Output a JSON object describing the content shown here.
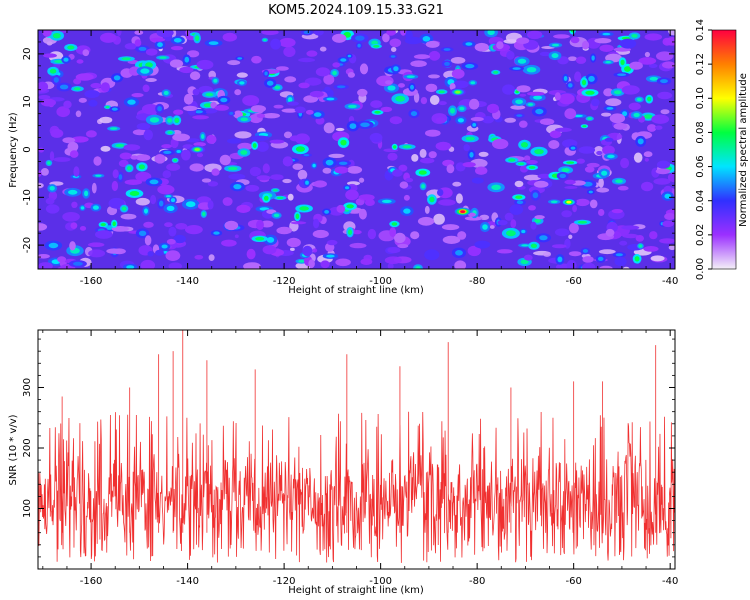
{
  "chart_data": [
    {
      "type": "heatmap",
      "title": "KOM5.2024.109.15.33.G21",
      "xlabel": "Height of straight line (km)",
      "ylabel": "Frequency (Hz)",
      "xlim": [
        -171,
        -39
      ],
      "ylim": [
        -25,
        25
      ],
      "x_ticks": [
        -160,
        -140,
        -120,
        -100,
        -80,
        -60,
        -40
      ],
      "y_ticks": [
        -20,
        -10,
        0,
        10,
        20
      ],
      "grid": false,
      "colorbar": {
        "label": "Normalized spectral amplitude",
        "range": [
          0,
          0.14
        ],
        "ticks": [
          "0.00",
          "0.02",
          "0.04",
          "0.06",
          "0.08",
          "0.10",
          "0.12",
          "0.14"
        ],
        "colormap": [
          "#f4f0f8",
          "#9b30ff",
          "#3030ff",
          "#00e5ff",
          "#00ff40",
          "#ffff00",
          "#ff8000",
          "#ff0040"
        ]
      },
      "highlights": [
        {
          "x": -83,
          "y": -13,
          "value": 0.14
        },
        {
          "x": -61,
          "y": -11,
          "value": 0.1
        },
        {
          "x": -138,
          "y": 0,
          "value": 0.09
        },
        {
          "x": -84,
          "y": 12,
          "value": 0.09
        }
      ]
    },
    {
      "type": "line",
      "xlabel": "Height of straight line (km)",
      "ylabel": "SNR (10 * v/v)",
      "xlim": [
        -171,
        -39
      ],
      "ylim": [
        0,
        395
      ],
      "x_ticks": [
        -160,
        -140,
        -120,
        -100,
        -80,
        -60,
        -40
      ],
      "y_ticks": [
        100,
        200,
        300
      ],
      "grid": false,
      "series_color": "#f03030",
      "baseline_mean": 115,
      "typical_peak_range": [
        200,
        300
      ],
      "peaks": [
        {
          "x": -166,
          "y": 285
        },
        {
          "x": -152,
          "y": 300
        },
        {
          "x": -146,
          "y": 355
        },
        {
          "x": -143,
          "y": 360
        },
        {
          "x": -141,
          "y": 395
        },
        {
          "x": -136,
          "y": 345
        },
        {
          "x": -126,
          "y": 330
        },
        {
          "x": -107,
          "y": 355
        },
        {
          "x": -96,
          "y": 335
        },
        {
          "x": -86,
          "y": 375
        },
        {
          "x": -73,
          "y": 300
        },
        {
          "x": -60,
          "y": 310
        },
        {
          "x": -54,
          "y": 310
        },
        {
          "x": -43,
          "y": 370
        }
      ]
    }
  ]
}
